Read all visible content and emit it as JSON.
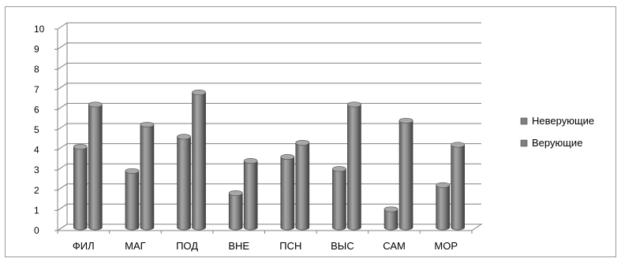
{
  "chart_data": {
    "type": "bar",
    "title": "",
    "xlabel": "",
    "ylabel": "",
    "categories": [
      "ФИЛ",
      "МАГ",
      "ПОД",
      "ВНЕ",
      "ПСН",
      "ВЫС",
      "САМ",
      "МОР"
    ],
    "series": [
      {
        "name": "Неверующие",
        "values": [
          4.0,
          2.8,
          4.5,
          1.7,
          3.5,
          2.9,
          0.9,
          2.1
        ]
      },
      {
        "name": "Верующие",
        "values": [
          6.1,
          5.1,
          6.7,
          3.3,
          4.2,
          6.1,
          5.3,
          4.1
        ]
      }
    ],
    "ylim": [
      0,
      10
    ],
    "yticks": [
      "0",
      "1",
      "2",
      "3",
      "4",
      "5",
      "6",
      "7",
      "8",
      "9",
      "10"
    ],
    "grid": true,
    "legend_position": "right",
    "three_d": true,
    "colors": {
      "series_fill": "#7f7f7f",
      "series_dark": "#4a4a4a",
      "series_light": "#a8a8a8",
      "grid": "#808080",
      "border": "#9a9a9a"
    }
  }
}
